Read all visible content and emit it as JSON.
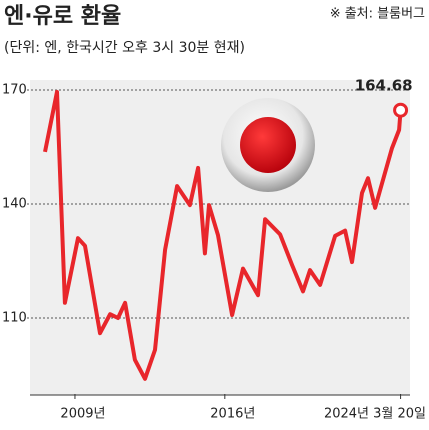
{
  "chart_data": {
    "type": "line",
    "title": "엔·유로 환율",
    "subtitle": "(단위: 엔, 한국시간 오후 3시 30분 현재)",
    "source": "※ 출처: 블룸버그",
    "x": [
      2007.6,
      2008.16,
      2008.53,
      2009.14,
      2009.47,
      2010.17,
      2010.64,
      2011.01,
      2011.34,
      2011.8,
      2012.27,
      2012.74,
      2013.21,
      2013.77,
      2014.37,
      2014.75,
      2015.07,
      2015.26,
      2015.68,
      2016.34,
      2016.85,
      2017.55,
      2017.88,
      2018.58,
      2019.14,
      2019.65,
      2019.98,
      2020.45,
      2021.15,
      2021.62,
      2021.94,
      2022.41,
      2022.69,
      2023.02,
      2023.81,
      2024.14,
      2024.21
    ],
    "values": [
      153.7,
      169.5,
      114,
      131,
      129,
      106,
      111,
      110,
      114,
      99,
      94,
      101.6,
      128,
      144.7,
      139.7,
      149.5,
      127,
      139.7,
      131.8,
      110.8,
      123,
      116,
      136,
      132,
      124,
      117,
      122.6,
      118.7,
      131.6,
      133,
      124.7,
      142.9,
      146.8,
      139,
      154.7,
      159.5,
      164.68
    ],
    "color": "#e8262b",
    "xlim": [
      2006.9,
      2024.65
    ],
    "xticks": [
      {
        "value": 2009,
        "label": "2009년"
      },
      {
        "value": 2016,
        "label": "2016년"
      },
      {
        "value": 2024.21,
        "label": "2024년 3월 20일"
      }
    ],
    "ylim": [
      90,
      172
    ],
    "yticks": [
      110,
      140,
      170
    ],
    "grid": true
  }
}
